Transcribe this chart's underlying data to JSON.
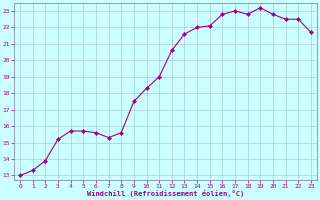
{
  "x": [
    0,
    1,
    2,
    3,
    4,
    5,
    6,
    7,
    8,
    9,
    10,
    11,
    12,
    13,
    14,
    15,
    16,
    17,
    18,
    19,
    20,
    21,
    22,
    23
  ],
  "y": [
    13.0,
    13.3,
    13.9,
    15.2,
    15.7,
    15.7,
    15.6,
    15.3,
    15.6,
    17.5,
    18.3,
    19.0,
    20.6,
    21.6,
    22.0,
    22.1,
    22.8,
    23.0,
    22.8,
    23.2,
    22.8,
    22.5,
    22.5,
    21.7
  ],
  "line_color": "#990099",
  "marker": "D",
  "marker_size": 2.0,
  "bg_color": "#ccffff",
  "grid_color": "#aacccc",
  "xlabel": "Windchill (Refroidissement éolien,°C)",
  "xlabel_color": "#990099",
  "tick_color": "#990099",
  "ylim": [
    12.7,
    23.5
  ],
  "xlim": [
    -0.5,
    23.5
  ],
  "yticks": [
    13,
    14,
    15,
    16,
    17,
    18,
    19,
    20,
    21,
    22,
    23
  ],
  "xticks": [
    0,
    1,
    2,
    3,
    4,
    5,
    6,
    7,
    8,
    9,
    10,
    11,
    12,
    13,
    14,
    15,
    16,
    17,
    18,
    19,
    20,
    21,
    22,
    23
  ],
  "spine_color": "#7777aa"
}
